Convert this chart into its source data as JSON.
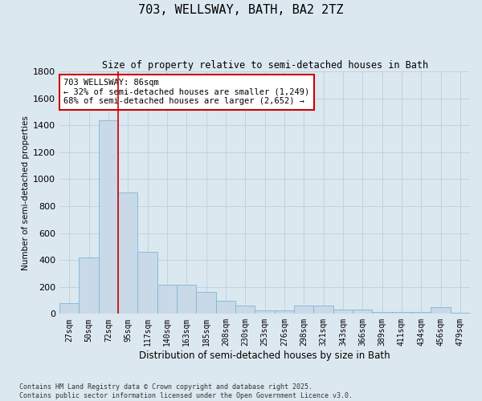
{
  "title": "703, WELLSWAY, BATH, BA2 2TZ",
  "subtitle": "Size of property relative to semi-detached houses in Bath",
  "xlabel": "Distribution of semi-detached houses by size in Bath",
  "ylabel": "Number of semi-detached properties",
  "categories": [
    "27sqm",
    "50sqm",
    "72sqm",
    "95sqm",
    "117sqm",
    "140sqm",
    "163sqm",
    "185sqm",
    "208sqm",
    "230sqm",
    "253sqm",
    "276sqm",
    "298sqm",
    "321sqm",
    "343sqm",
    "366sqm",
    "389sqm",
    "411sqm",
    "434sqm",
    "456sqm",
    "479sqm"
  ],
  "values": [
    80,
    420,
    1440,
    900,
    460,
    215,
    215,
    160,
    100,
    60,
    25,
    25,
    60,
    60,
    30,
    30,
    15,
    15,
    15,
    50,
    10
  ],
  "bar_color": "#c9d9e8",
  "bar_edge_color": "#7ab8d8",
  "grid_color": "#b8cfe0",
  "bg_color": "#dce8f0",
  "vline_x": 2.5,
  "vline_color": "#cc0000",
  "annotation_text": "703 WELLSWAY: 86sqm\n← 32% of semi-detached houses are smaller (1,249)\n68% of semi-detached houses are larger (2,652) →",
  "annotation_box_color": "#ffffff",
  "annotation_box_edge": "#cc0000",
  "footer": "Contains HM Land Registry data © Crown copyright and database right 2025.\nContains public sector information licensed under the Open Government Licence v3.0.",
  "ylim": [
    0,
    1800
  ],
  "yticks": [
    0,
    200,
    400,
    600,
    800,
    1000,
    1200,
    1400,
    1600,
    1800
  ]
}
